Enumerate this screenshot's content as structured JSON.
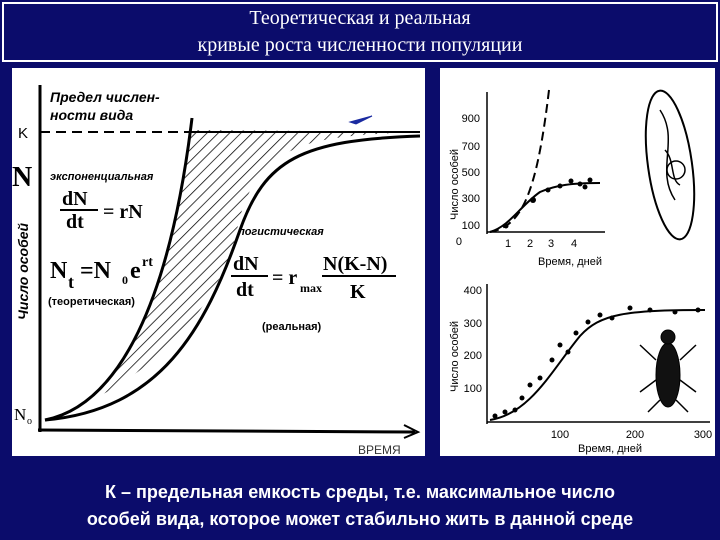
{
  "header": {
    "title_line1": "Теоретическая и реальная",
    "title_line2": "кривые роста численности популяции"
  },
  "left": {
    "limit_line1": "Предел числен-",
    "limit_line2": "ности вида",
    "k": "K",
    "n_symbol": "N",
    "y_axis": "Число особей",
    "exp_label": "экспоненциальная",
    "exp_formula": {
      "dn": "dN",
      "dt": "dt",
      "rhs": "= rN"
    },
    "nt_formula": {
      "n": "N",
      "t": "t",
      "eq": "=N",
      "zero": "0",
      "e": "e",
      "rt": "rt"
    },
    "theory": "(теоретическая)",
    "log_label": "логистическая",
    "log_formula": {
      "dn": "dN",
      "dt": "dt",
      "eq": "= r",
      "max": "max",
      "num": "N(K-N)",
      "den": "K"
    },
    "real": "(реальная)",
    "n0": "N",
    "n0_sub": "o",
    "x_axis": "ВРЕМЯ"
  },
  "right_top": {
    "y_axis": "Число особей",
    "x_axis": "Время, дней",
    "yticks": [
      "900",
      "700",
      "500",
      "300",
      "100",
      "0"
    ],
    "xticks": [
      "1",
      "2",
      "3",
      "4"
    ]
  },
  "right_bottom": {
    "y_axis": "Число особей",
    "x_axis": "Время, дней",
    "yticks": [
      "400",
      "300",
      "200",
      "100"
    ],
    "xticks": [
      "100",
      "200",
      "300"
    ]
  },
  "footer": {
    "line1": "К – предельная емкость среды, т.е. максимальное число",
    "line2": "особей вида, которое может стабильно жить в данной среде"
  }
}
